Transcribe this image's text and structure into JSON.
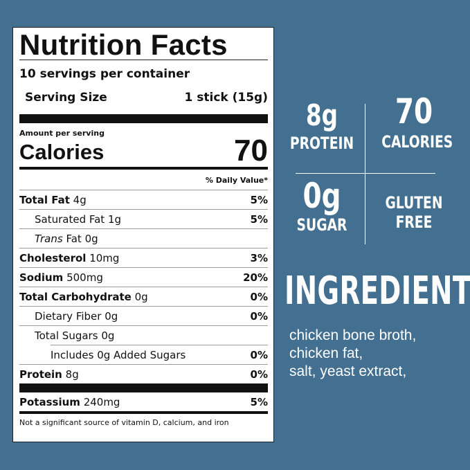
{
  "label": {
    "title": "Nutrition Facts",
    "servings": "10 servings per container",
    "serving_size_label": "Serving Size",
    "serving_size_value": "1 stick (15g)",
    "amount_per_serving": "Amount per serving",
    "calories_label": "Calories",
    "calories_value": "70",
    "daily_value_header": "% Daily Value*",
    "rows": [
      {
        "name": "Total Fat",
        "amount": "4g",
        "pct": "5%"
      },
      {
        "name": "Saturated Fat",
        "amount": "1g",
        "pct": "5%"
      },
      {
        "name": "Trans",
        "suffix": "Fat",
        "amount": "0g",
        "pct": ""
      },
      {
        "name": "Cholesterol",
        "amount": "10mg",
        "pct": "3%"
      },
      {
        "name": "Sodium",
        "amount": "500mg",
        "pct": "20%"
      },
      {
        "name": "Total Carbohydrate",
        "amount": "0g",
        "pct": "0%"
      },
      {
        "name": "Dietary Fiber",
        "amount": "0g",
        "pct": "0%"
      },
      {
        "name": "Total Sugars",
        "amount": "0g",
        "pct": ""
      },
      {
        "name": "Includes",
        "amount": "0g Added Sugars",
        "pct": "0%"
      },
      {
        "name": "Protein",
        "amount": "8g",
        "pct": "0%"
      },
      {
        "name": "Potassium",
        "amount": "240mg",
        "pct": "5%"
      }
    ],
    "footnote": "Not a significant source of vitamin D, calcium, and iron"
  },
  "highlights": {
    "protein_value": "8g",
    "protein_label": "PROTEIN",
    "calories_value": "70",
    "calories_label": "CALORIES",
    "sugar_value": "0g",
    "sugar_label": "SUGAR",
    "gluten_line1": "GLUTEN",
    "gluten_line2": "FREE"
  },
  "ingredients": {
    "title": "INGREDIENTS",
    "lines": [
      "chicken bone broth,",
      "chicken fat,",
      "salt, yeast extract,"
    ]
  },
  "colors": {
    "background": "#436f91",
    "panel": "#ffffff",
    "text_dark": "#111111"
  }
}
